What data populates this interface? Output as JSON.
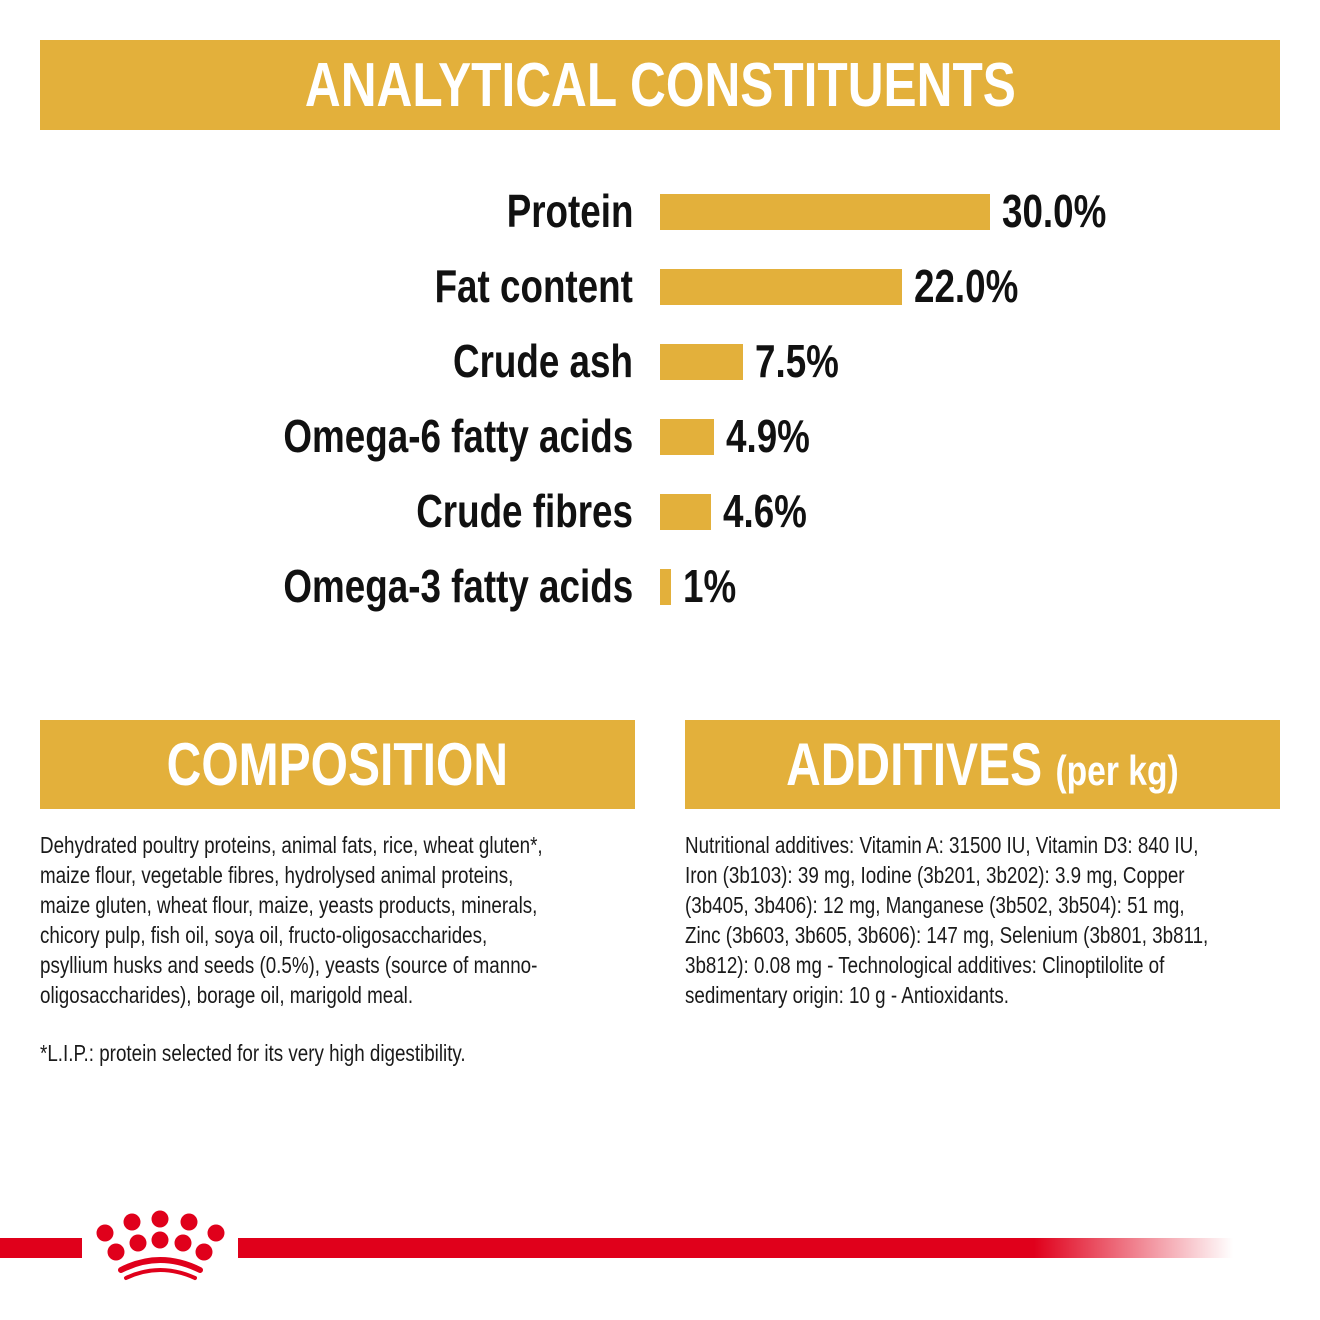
{
  "header": {
    "title": "ANALYTICAL CONSTITUENTS"
  },
  "chart_data": {
    "type": "bar",
    "orientation": "horizontal",
    "categories": [
      "Protein",
      "Fat content",
      "Crude ash",
      "Omega-6 fatty acids",
      "Crude fibres",
      "Omega-3 fatty acids"
    ],
    "values": [
      30.0,
      22.0,
      7.5,
      4.9,
      4.6,
      1
    ],
    "data_labels": [
      "30.0%",
      "22.0%",
      "7.5%",
      "4.9%",
      "4.6%",
      "1%"
    ],
    "title": "ANALYTICAL CONSTITUENTS",
    "xlabel": "",
    "ylabel": "",
    "xlim": [
      0,
      30
    ],
    "grid": false,
    "bar_color": "#E3B03B"
  },
  "composition": {
    "title": "COMPOSITION",
    "lines": [
      "Dehydrated poultry proteins, animal fats, rice, wheat gluten*,",
      "maize flour, vegetable fibres, hydrolysed animal proteins,",
      "maize gluten, wheat flour, maize, yeasts products, minerals,",
      "chicory pulp, fish oil, soya oil, fructo-oligosaccharides,",
      "psyllium husks and seeds (0.5%), yeasts (source of manno-",
      "oligosaccharides), borage oil, marigold meal."
    ],
    "footnote": "*L.I.P.: protein selected for its very high digestibility."
  },
  "additives": {
    "title": "ADDITIVES",
    "subtitle": "(per kg)",
    "lines": [
      "Nutritional additives: Vitamin A: 31500 IU, Vitamin D3: 840 IU,",
      "Iron (3b103): 39 mg, Iodine (3b201, 3b202): 3.9 mg, Copper",
      "(3b405, 3b406): 12 mg, Manganese (3b502, 3b504): 51 mg,",
      "Zinc (3b603, 3b605, 3b606): 147 mg, Selenium (3b801, 3b811,",
      "3b812): 0.08 mg - Technological additives: Clinoptilolite of",
      "sedimentary origin: 10 g - Antioxidants."
    ]
  },
  "colors": {
    "accent": "#E3B03B",
    "brand_red": "#E0001B"
  },
  "logo": {
    "icon": "crown-logo-icon"
  }
}
